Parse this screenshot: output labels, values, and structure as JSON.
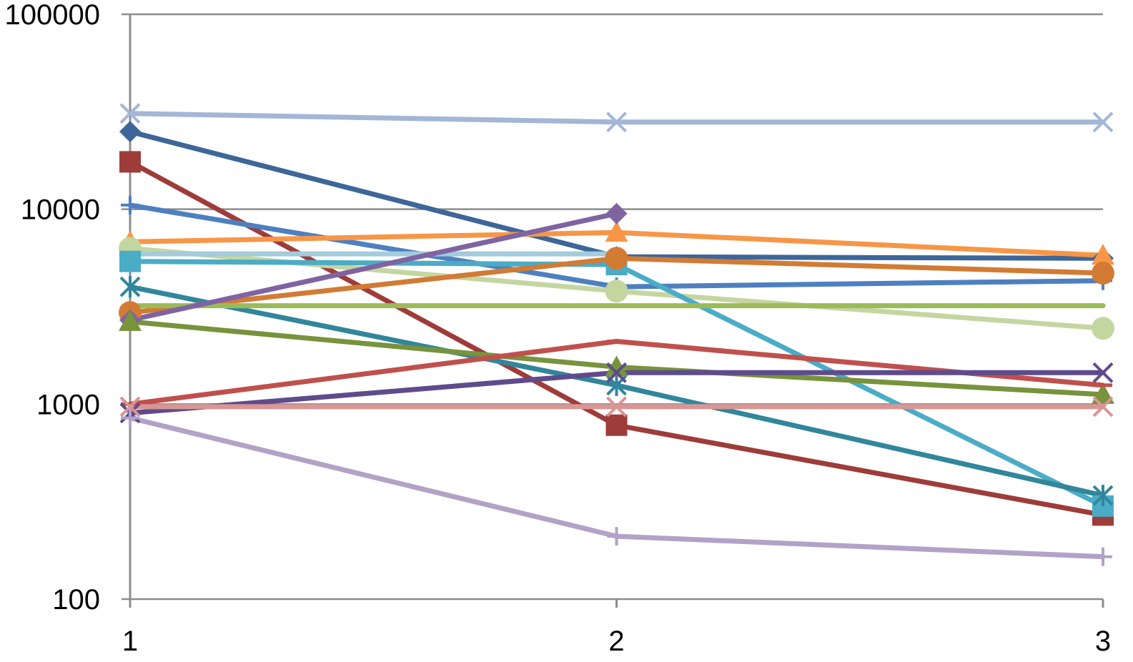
{
  "chart_data": {
    "type": "line",
    "title": "",
    "xlabel": "",
    "ylabel": "",
    "x": [
      1,
      2,
      3
    ],
    "x_tick_labels": [
      "1",
      "2",
      "3"
    ],
    "y_scale": "log",
    "ylim": [
      100,
      100000
    ],
    "y_tick_values": [
      100,
      1000,
      10000,
      100000
    ],
    "y_tick_labels": [
      "100",
      "1000",
      "10000",
      "100000"
    ],
    "grid": true,
    "legend": "none",
    "series": [
      {
        "color": "#a4b6d6",
        "marker": "x",
        "values": [
          31000,
          28000,
          28000
        ]
      },
      {
        "color": "#3d6699",
        "marker": "diamond",
        "values": [
          25000,
          5700,
          5600
        ]
      },
      {
        "color": "#9e3c3a",
        "marker": "square",
        "values": [
          17500,
          780,
          270
        ]
      },
      {
        "color": "#4e80c0",
        "marker": "plus",
        "values": [
          10500,
          4000,
          4300
        ]
      },
      {
        "color": "#f79646",
        "marker": "triangle",
        "values": [
          6800,
          7600,
          5800
        ]
      },
      {
        "color": "#c4d6a0",
        "marker": "circle",
        "values": [
          6300,
          3800,
          2450
        ]
      },
      {
        "color": "#a3cbdb",
        "marker": "none",
        "values": [
          5900,
          5900,
          null
        ]
      },
      {
        "color": "#4bacc6",
        "marker": "square",
        "values": [
          5400,
          5200,
          300
        ]
      },
      {
        "color": "#31869b",
        "marker": "star",
        "values": [
          4000,
          1250,
          340
        ]
      },
      {
        "color": "#d27b34",
        "marker": "circle",
        "values": [
          2950,
          5600,
          4700
        ]
      },
      {
        "color": "#9bbb59",
        "marker": "none",
        "values": [
          3200,
          3200,
          3200
        ]
      },
      {
        "color": "#8064a2",
        "marker": "diamond",
        "values": [
          2700,
          9500,
          null
        ]
      },
      {
        "color": "#77933c",
        "marker": "triangle",
        "values": [
          2650,
          1550,
          1120
        ]
      },
      {
        "color": "#c0504d",
        "marker": "dash",
        "values": [
          1000,
          2100,
          1250
        ]
      },
      {
        "color": "#5f4b8b",
        "marker": "x",
        "values": [
          900,
          1450,
          1450
        ]
      },
      {
        "color": "#d99694",
        "marker": "x",
        "values": [
          970,
          970,
          970
        ]
      },
      {
        "color": "#b3a2c7",
        "marker": "plus",
        "values": [
          850,
          210,
          165
        ]
      }
    ]
  }
}
